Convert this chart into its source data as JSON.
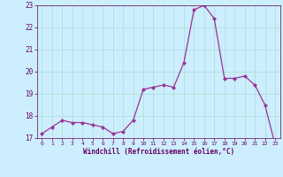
{
  "x": [
    0,
    1,
    2,
    3,
    4,
    5,
    6,
    7,
    8,
    9,
    10,
    11,
    12,
    13,
    14,
    15,
    16,
    17,
    18,
    19,
    20,
    21,
    22,
    23
  ],
  "y": [
    17.2,
    17.5,
    17.8,
    17.7,
    17.7,
    17.6,
    17.5,
    17.2,
    17.3,
    17.8,
    19.2,
    19.3,
    19.4,
    19.3,
    20.4,
    22.8,
    23.0,
    22.4,
    19.7,
    19.7,
    19.8,
    19.4,
    18.5,
    16.7
  ],
  "line_color": "#993399",
  "marker": "D",
  "marker_size": 2.0,
  "bg_color": "#cceeff",
  "grid_color": "#aaddcc",
  "xlabel": "Windchill (Refroidissement éolien,°C)",
  "xlabel_color": "#660066",
  "tick_color": "#660066",
  "ylim": [
    17,
    23
  ],
  "xlim": [
    -0.5,
    23.5
  ],
  "yticks": [
    17,
    18,
    19,
    20,
    21,
    22,
    23
  ],
  "xticks": [
    0,
    1,
    2,
    3,
    4,
    5,
    6,
    7,
    8,
    9,
    10,
    11,
    12,
    13,
    14,
    15,
    16,
    17,
    18,
    19,
    20,
    21,
    22,
    23
  ]
}
